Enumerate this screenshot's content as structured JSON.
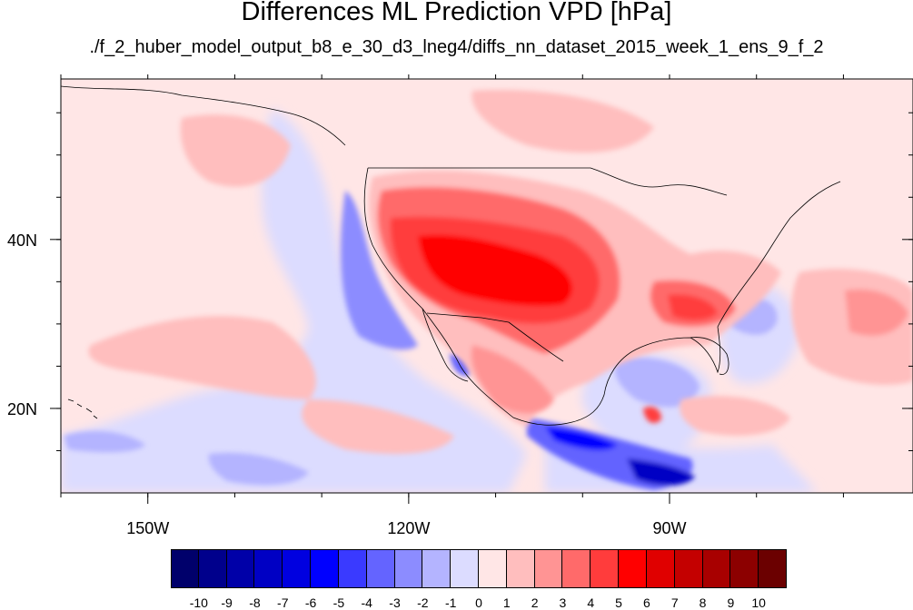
{
  "title": "Differences ML Prediction VPD [hPa]",
  "subtitle": "./f_2_huber_model_output_b8_e_30_d3_lneg4/diffs_nn_dataset_2015_week_1_ens_9_f_2",
  "map": {
    "lon_range": [
      -160,
      -62
    ],
    "lat_range": [
      10,
      59
    ],
    "x_ticks": [
      {
        "lon": -150,
        "label": "150W"
      },
      {
        "lon": -120,
        "label": "120W"
      },
      {
        "lon": -90,
        "label": "90W"
      }
    ],
    "y_ticks": [
      {
        "lat": 40,
        "label": "40N"
      },
      {
        "lat": 20,
        "label": "20N"
      }
    ]
  },
  "colorbar": {
    "labels": [
      "-10",
      "-9",
      "-8",
      "-7",
      "-6",
      "-5",
      "-4",
      "-3",
      "-2",
      "-1",
      "0",
      "1",
      "2",
      "3",
      "4",
      "5",
      "6",
      "7",
      "8",
      "9",
      "10"
    ],
    "colors": [
      "#00006b",
      "#00008c",
      "#0000a8",
      "#0000c4",
      "#0000e0",
      "#0000ff",
      "#3a3aff",
      "#6464ff",
      "#8c8cff",
      "#b4b4ff",
      "#dcdcff",
      "#ffe6e6",
      "#ffbebe",
      "#ff9494",
      "#ff6a6a",
      "#ff3c3c",
      "#ff0000",
      "#e00000",
      "#c40000",
      "#a80000",
      "#8c0000",
      "#6b0000"
    ]
  }
}
